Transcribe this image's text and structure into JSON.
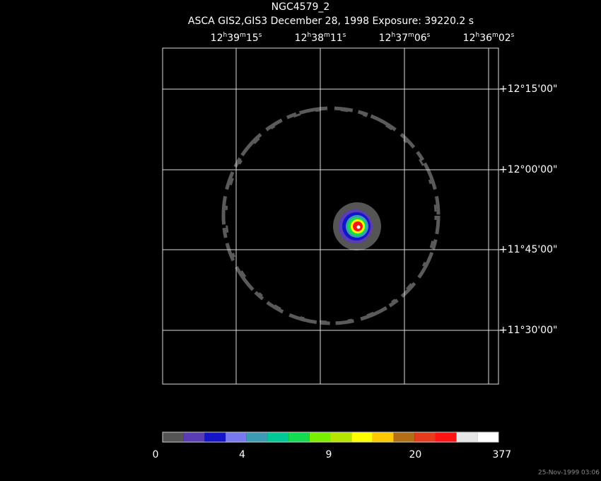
{
  "title": "NGC4579_2",
  "subtitle": "ASCA GIS2,GIS3 December 28, 1998 Exposure: 39220.2 s",
  "ra_labels": [
    [
      "12",
      "h",
      "39",
      "m",
      "15",
      "s"
    ],
    [
      "12",
      "h",
      "38",
      "m",
      "11",
      "s"
    ],
    [
      "12",
      "h",
      "37",
      "m",
      "06",
      "s"
    ],
    [
      "12",
      "h",
      "36",
      "m",
      "02",
      "s"
    ]
  ],
  "dec_labels": [
    "+12°15'00\"",
    "+12°00'00\"",
    "+11°45'00\"",
    "+11°30'00\""
  ],
  "colorbar": {
    "colors": [
      "#555555",
      "#5a3cb4",
      "#1414c8",
      "#7878f0",
      "#3c9cb4",
      "#00c896",
      "#14dc50",
      "#78f000",
      "#b4e600",
      "#ffff00",
      "#ffc800",
      "#b46e14",
      "#e63c1e",
      "#ff1414",
      "#e6e6e6",
      "#ffffff"
    ],
    "labels": [
      "0",
      "4",
      "9",
      "20",
      "377"
    ]
  },
  "timestamp": "25-Nov-1999 03:06"
}
